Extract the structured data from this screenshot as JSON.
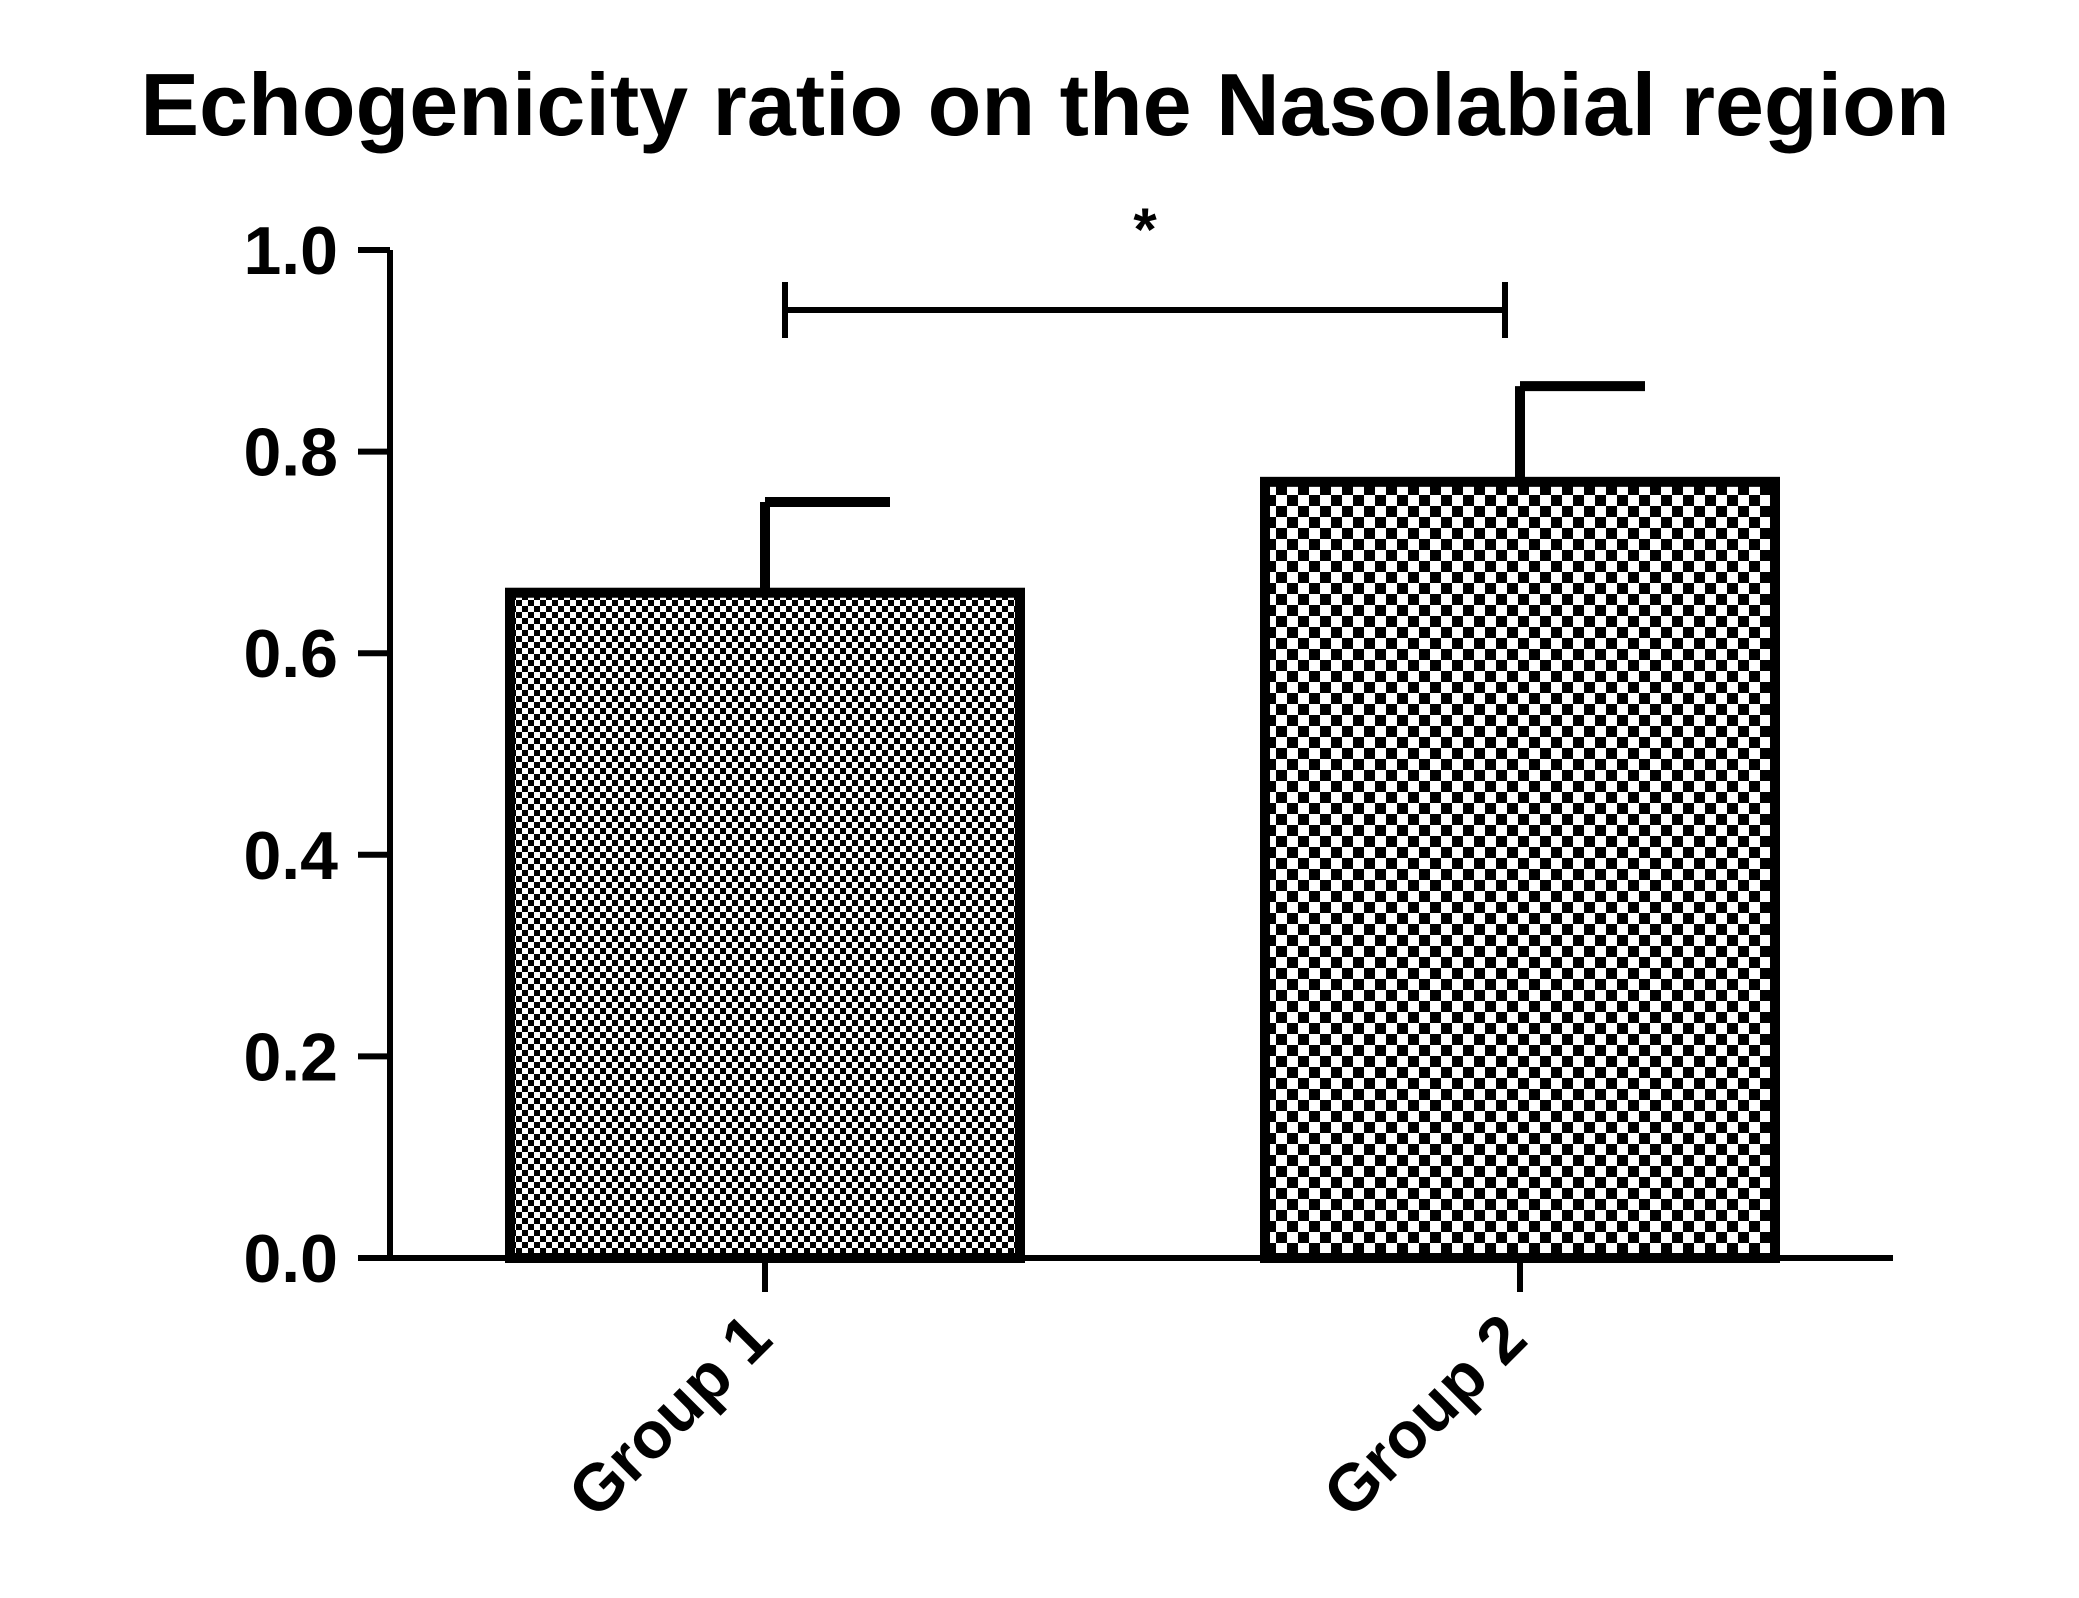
{
  "chart_data": {
    "type": "bar",
    "title": "Echogenicity ratio on the Nasolabial region",
    "xlabel": "",
    "ylabel": "",
    "categories": [
      "Group 1",
      "Group 2"
    ],
    "values": [
      0.66,
      0.77
    ],
    "error_upper": [
      0.75,
      0.865
    ],
    "ylim": [
      0,
      1.0
    ],
    "yticks": [
      "0.0",
      "0.2",
      "0.4",
      "0.6",
      "0.8",
      "1.0"
    ],
    "grid": false,
    "legend": "none",
    "patterns": [
      "fine-checker",
      "coarse-checker"
    ],
    "significance": {
      "between": [
        "Group 1",
        "Group 2"
      ],
      "label": "*"
    },
    "colors": {
      "ink": "#000000",
      "background": "#ffffff"
    }
  }
}
